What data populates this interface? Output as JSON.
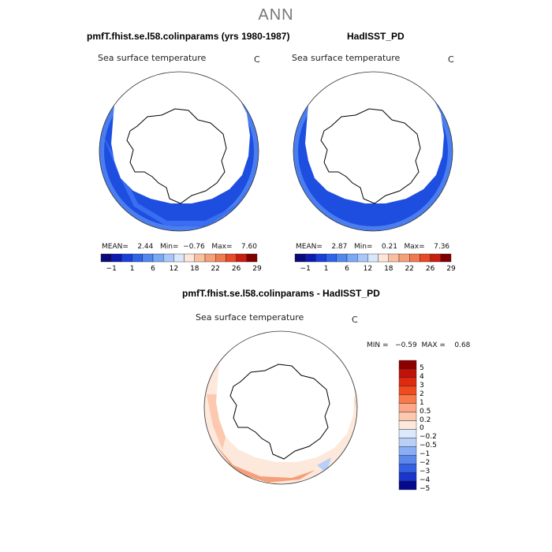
{
  "figure": {
    "main_title": "ANN",
    "panel1_title": "pmfT.fhist.se.l58.colinparams (yrs 1980-1987)",
    "panel2_title": "HadISST_PD",
    "panel3_title": "pmfT.fhist.se.l58.colinparams - HadISST_PD"
  },
  "panels": [
    {
      "field": "Sea surface temperature",
      "unit": "C",
      "stats": "MEAN=    2.44   Min=  −0.76   Max=    7.60"
    },
    {
      "field": "Sea surface temperature",
      "unit": "C",
      "stats": "MEAN=    2.87   Min=    0.21   Max=    7.36"
    },
    {
      "field": "Sea surface temperature",
      "unit": "C",
      "stats": "MIN =   −0.59  MAX =    0.68"
    }
  ],
  "colorbar_abs": {
    "ticks": [
      "−1",
      "1",
      "6",
      "12",
      "18",
      "22",
      "26",
      "29"
    ],
    "colors": [
      "#0a0a7a",
      "#0d1cb0",
      "#1840d8",
      "#2f63e8",
      "#5088f0",
      "#79a8f5",
      "#a8c8fa",
      "#d8e8fc",
      "#fde6d8",
      "#f8c0a0",
      "#f4a07a",
      "#f07a50",
      "#e84a28",
      "#c81e10",
      "#800000"
    ]
  },
  "colorbar_diff": {
    "ticks": [
      "5",
      "4",
      "3",
      "2",
      "1",
      "0.5",
      "0.2",
      "0",
      "−0.2",
      "−0.5",
      "−1",
      "−2",
      "−3",
      "−4",
      "−5"
    ],
    "colors": [
      "#8b0000",
      "#c01208",
      "#e02a10",
      "#f04a20",
      "#f87a48",
      "#fca888",
      "#fdc8b0",
      "#fde8dc",
      "#dce8fc",
      "#b8d0f8",
      "#8aaef4",
      "#5c88ee",
      "#3460e4",
      "#1836cc",
      "#06088e"
    ]
  }
}
